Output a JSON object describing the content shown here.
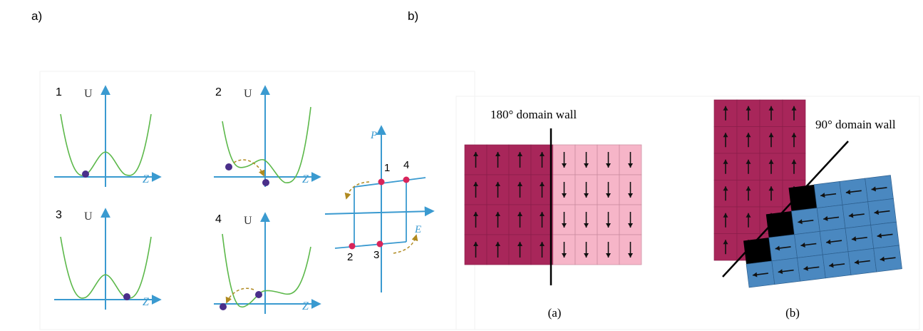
{
  "panel_a": {
    "label": "a)",
    "plots": [
      {
        "number": "1",
        "y_axis": "U",
        "x_axis": "Z"
      },
      {
        "number": "2",
        "y_axis": "U",
        "x_axis": "Z"
      },
      {
        "number": "3",
        "y_axis": "U",
        "x_axis": "Z"
      },
      {
        "number": "4",
        "y_axis": "U",
        "x_axis": "Z"
      }
    ],
    "hysteresis": {
      "y_axis": "P",
      "x_axis": "E",
      "points": [
        "1",
        "4",
        "2",
        "3"
      ]
    }
  },
  "panel_b": {
    "label": "b)",
    "left": {
      "title": "180° domain wall",
      "caption": "(a)"
    },
    "right": {
      "title": "90° domain wall",
      "caption": "(b)"
    }
  }
}
